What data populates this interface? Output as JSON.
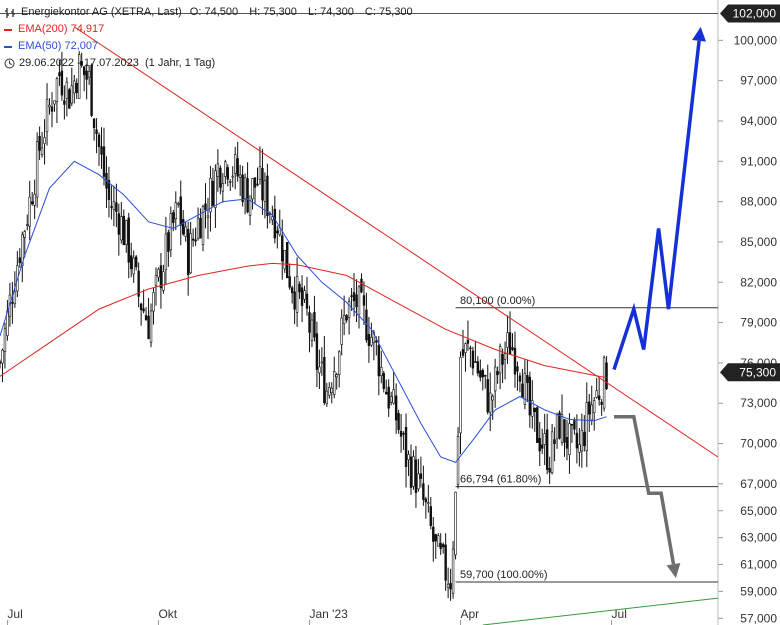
{
  "legend": {
    "title": "Energiekontor AG (XETRA, Last)",
    "open": "O: 74,500",
    "high": "H: 75,300",
    "low": "L: 74,300",
    "close": "C: 75,300",
    "ema200_label": "EMA(200)",
    "ema200_value": "74,917",
    "ema50_label": "EMA(50)",
    "ema50_value": "72,007",
    "range_text": "29.06.2022 - 17.07.2023",
    "range_detail": "(1 Jahr, 1 Tag)",
    "clock_icon": "clock-icon",
    "ohlc_icon": "ohlc-bars-icon"
  },
  "colors": {
    "candles": "#111111",
    "ema200": "#e0251f",
    "ema50": "#2b4fd6",
    "trendline": "#e0251f",
    "bull_arrow": "#1530d6",
    "bear_arrow": "#6e6e6e",
    "green_line": "#3a9a3a",
    "fib_line": "#333333",
    "price_tag_bg": "#222222"
  },
  "chart_data": {
    "type": "candlestick",
    "x_ticks": [
      "Jul",
      "Okt",
      "Jan '23",
      "Apr",
      "Jul"
    ],
    "y_ticks": [
      "57,000",
      "59,000",
      "61,000",
      "63,000",
      "65,000",
      "67,000",
      "70,000",
      "73,000",
      "76,000",
      "79,000",
      "82,000",
      "85,000",
      "88,000",
      "91,000",
      "94,000",
      "97,000",
      "100,000"
    ],
    "ylim": [
      56.5,
      103
    ],
    "price_tags": [
      {
        "label": "102,000",
        "value": 102.0
      },
      {
        "label": "75,300",
        "value": 75.3
      }
    ],
    "fib_levels": [
      {
        "label": "80,100 (0.00%)",
        "value": 80.1
      },
      {
        "label": "66,794 (61.80%)",
        "value": 66.794
      },
      {
        "label": "59,700 (100.00%)",
        "value": 59.7
      }
    ],
    "close_series": [
      {
        "t": 0,
        "c": 76.0
      },
      {
        "t": 4,
        "c": 80.5
      },
      {
        "t": 8,
        "c": 84.5
      },
      {
        "t": 12,
        "c": 88.0
      },
      {
        "t": 16,
        "c": 92.0
      },
      {
        "t": 20,
        "c": 95.0
      },
      {
        "t": 24,
        "c": 97.5
      },
      {
        "t": 28,
        "c": 96.0
      },
      {
        "t": 32,
        "c": 98.0
      },
      {
        "t": 36,
        "c": 97.0
      },
      {
        "t": 40,
        "c": 92.0
      },
      {
        "t": 44,
        "c": 88.0
      },
      {
        "t": 48,
        "c": 87.0
      },
      {
        "t": 52,
        "c": 84.5
      },
      {
        "t": 56,
        "c": 81.0
      },
      {
        "t": 60,
        "c": 79.0
      },
      {
        "t": 64,
        "c": 82.0
      },
      {
        "t": 68,
        "c": 85.0
      },
      {
        "t": 72,
        "c": 87.5
      },
      {
        "t": 76,
        "c": 84.0
      },
      {
        "t": 80,
        "c": 86.5
      },
      {
        "t": 84,
        "c": 88.0
      },
      {
        "t": 88,
        "c": 90.5
      },
      {
        "t": 92,
        "c": 91.0
      },
      {
        "t": 96,
        "c": 90.0
      },
      {
        "t": 100,
        "c": 88.5
      },
      {
        "t": 104,
        "c": 89.5
      },
      {
        "t": 108,
        "c": 88.0
      },
      {
        "t": 112,
        "c": 86.5
      },
      {
        "t": 116,
        "c": 83.0
      },
      {
        "t": 120,
        "c": 81.0
      },
      {
        "t": 124,
        "c": 79.5
      },
      {
        "t": 128,
        "c": 76.0
      },
      {
        "t": 132,
        "c": 74.0
      },
      {
        "t": 136,
        "c": 76.5
      },
      {
        "t": 140,
        "c": 80.0
      },
      {
        "t": 144,
        "c": 80.5
      },
      {
        "t": 148,
        "c": 79.0
      },
      {
        "t": 152,
        "c": 77.0
      },
      {
        "t": 156,
        "c": 74.0
      },
      {
        "t": 160,
        "c": 72.0
      },
      {
        "t": 164,
        "c": 69.0
      },
      {
        "t": 168,
        "c": 67.5
      },
      {
        "t": 172,
        "c": 65.0
      },
      {
        "t": 176,
        "c": 62.0
      },
      {
        "t": 180,
        "c": 60.5
      },
      {
        "t": 182,
        "c": 60.0
      },
      {
        "t": 184,
        "c": 66.0
      },
      {
        "t": 186,
        "c": 76.5
      },
      {
        "t": 190,
        "c": 77.0
      },
      {
        "t": 194,
        "c": 75.0
      },
      {
        "t": 198,
        "c": 73.0
      },
      {
        "t": 202,
        "c": 76.0
      },
      {
        "t": 206,
        "c": 77.5
      },
      {
        "t": 210,
        "c": 76.0
      },
      {
        "t": 214,
        "c": 72.0
      },
      {
        "t": 218,
        "c": 70.5
      },
      {
        "t": 222,
        "c": 69.0
      },
      {
        "t": 226,
        "c": 71.5
      },
      {
        "t": 230,
        "c": 70.0
      },
      {
        "t": 234,
        "c": 69.5
      },
      {
        "t": 238,
        "c": 72.5
      },
      {
        "t": 242,
        "c": 74.0
      },
      {
        "t": 245,
        "c": 75.3
      }
    ],
    "ema50_series": [
      {
        "t": 0,
        "v": 78.0
      },
      {
        "t": 10,
        "v": 84.0
      },
      {
        "t": 20,
        "v": 89.0
      },
      {
        "t": 30,
        "v": 91.0
      },
      {
        "t": 40,
        "v": 90.0
      },
      {
        "t": 50,
        "v": 88.5
      },
      {
        "t": 60,
        "v": 86.5
      },
      {
        "t": 70,
        "v": 86.0
      },
      {
        "t": 80,
        "v": 87.0
      },
      {
        "t": 90,
        "v": 88.0
      },
      {
        "t": 100,
        "v": 88.2
      },
      {
        "t": 110,
        "v": 87.0
      },
      {
        "t": 120,
        "v": 84.0
      },
      {
        "t": 130,
        "v": 82.0
      },
      {
        "t": 140,
        "v": 80.5
      },
      {
        "t": 150,
        "v": 78.5
      },
      {
        "t": 160,
        "v": 75.0
      },
      {
        "t": 170,
        "v": 71.5
      },
      {
        "t": 178,
        "v": 69.0
      },
      {
        "t": 184,
        "v": 68.6
      },
      {
        "t": 192,
        "v": 70.5
      },
      {
        "t": 200,
        "v": 72.5
      },
      {
        "t": 210,
        "v": 73.5
      },
      {
        "t": 220,
        "v": 72.5
      },
      {
        "t": 230,
        "v": 71.8
      },
      {
        "t": 240,
        "v": 71.7
      },
      {
        "t": 245,
        "v": 72.0
      }
    ],
    "ema200_series": [
      {
        "t": 0,
        "v": 75.0
      },
      {
        "t": 20,
        "v": 77.5
      },
      {
        "t": 40,
        "v": 80.0
      },
      {
        "t": 60,
        "v": 81.5
      },
      {
        "t": 80,
        "v": 82.5
      },
      {
        "t": 100,
        "v": 83.2
      },
      {
        "t": 110,
        "v": 83.4
      },
      {
        "t": 120,
        "v": 83.3
      },
      {
        "t": 140,
        "v": 82.5
      },
      {
        "t": 160,
        "v": 80.5
      },
      {
        "t": 180,
        "v": 78.5
      },
      {
        "t": 200,
        "v": 77.0
      },
      {
        "t": 220,
        "v": 75.8
      },
      {
        "t": 245,
        "v": 74.9
      }
    ],
    "trendline": [
      {
        "t": 30,
        "v": 101.0
      },
      {
        "t": 290,
        "v": 69.0
      }
    ],
    "green_line": [
      {
        "t": 195,
        "v": 56.5
      },
      {
        "t": 290,
        "v": 58.5
      }
    ],
    "bull_scenario": [
      {
        "t": 248,
        "v": 75.5
      },
      {
        "t": 256,
        "v": 80.0
      },
      {
        "t": 260,
        "v": 77.0
      },
      {
        "t": 266,
        "v": 86.0
      },
      {
        "t": 270,
        "v": 80.0
      },
      {
        "t": 283,
        "v": 101.0
      }
    ],
    "bear_scenario": [
      {
        "t": 248,
        "v": 72.0
      },
      {
        "t": 256,
        "v": 72.0
      },
      {
        "t": 262,
        "v": 66.3
      },
      {
        "t": 267,
        "v": 66.3
      },
      {
        "t": 273,
        "v": 60.0
      }
    ]
  }
}
